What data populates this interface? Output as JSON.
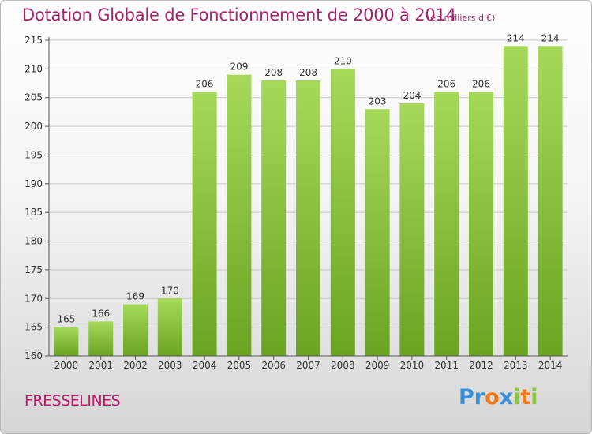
{
  "title": "Dotation Globale de Fonctionnement de 2000 à 2014",
  "unit_note": "(en milliers d'€)",
  "commune": "FRESSELINES",
  "logo": {
    "text": "Proxiti",
    "letters": [
      {
        "ch": "P",
        "color": "#3a8fd8"
      },
      {
        "ch": "r",
        "color": "#3a8fd8"
      },
      {
        "ch": "o",
        "color": "#f07a1a"
      },
      {
        "ch": "x",
        "color": "#3a8fd8"
      },
      {
        "ch": "i",
        "color": "#8cc63f"
      },
      {
        "ch": "t",
        "color": "#f07a1a"
      },
      {
        "ch": "i",
        "color": "#8cc63f"
      }
    ]
  },
  "colors": {
    "bar_light": "#a6d95a",
    "bar_dark": "#6aa421",
    "title": "#a0246a",
    "grid": "#c8c8c8"
  },
  "chart_data": {
    "type": "bar",
    "title": "Dotation Globale de Fonctionnement de 2000 à 2014",
    "xlabel": "",
    "ylabel": "",
    "ylim": [
      160,
      215
    ],
    "yticks": [
      160,
      165,
      170,
      175,
      180,
      185,
      190,
      195,
      200,
      205,
      210,
      215
    ],
    "grid": true,
    "categories": [
      "2000",
      "2001",
      "2002",
      "2003",
      "2004",
      "2005",
      "2006",
      "2007",
      "2008",
      "2009",
      "2010",
      "2011",
      "2012",
      "2013",
      "2014"
    ],
    "values": [
      165,
      166,
      169,
      170,
      206,
      209,
      208,
      208,
      210,
      203,
      204,
      206,
      206,
      214,
      214
    ]
  }
}
